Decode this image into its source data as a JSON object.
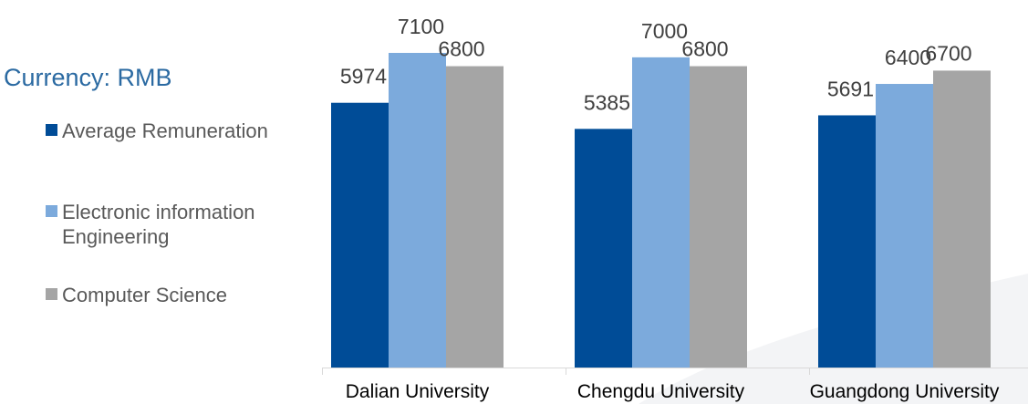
{
  "legend_title": "Currency: RMB",
  "chart_data": {
    "type": "bar",
    "title": "",
    "xlabel": "",
    "ylabel": "",
    "categories": [
      "Dalian University",
      "Chengdu University",
      "Guangdong University"
    ],
    "series": [
      {
        "name": "Average Remuneration",
        "values": [
          5974,
          5385,
          5691
        ],
        "color": "#004c97"
      },
      {
        "name": "Electronic information Engineering",
        "values": [
          7100,
          7000,
          6400
        ],
        "color": "#7caadc"
      },
      {
        "name": "Computer Science",
        "values": [
          6800,
          6800,
          6700
        ],
        "color": "#a5a5a5"
      }
    ],
    "ylim": [
      0,
      7800
    ],
    "grid": false,
    "legend_position": "left",
    "data_labels": true
  }
}
